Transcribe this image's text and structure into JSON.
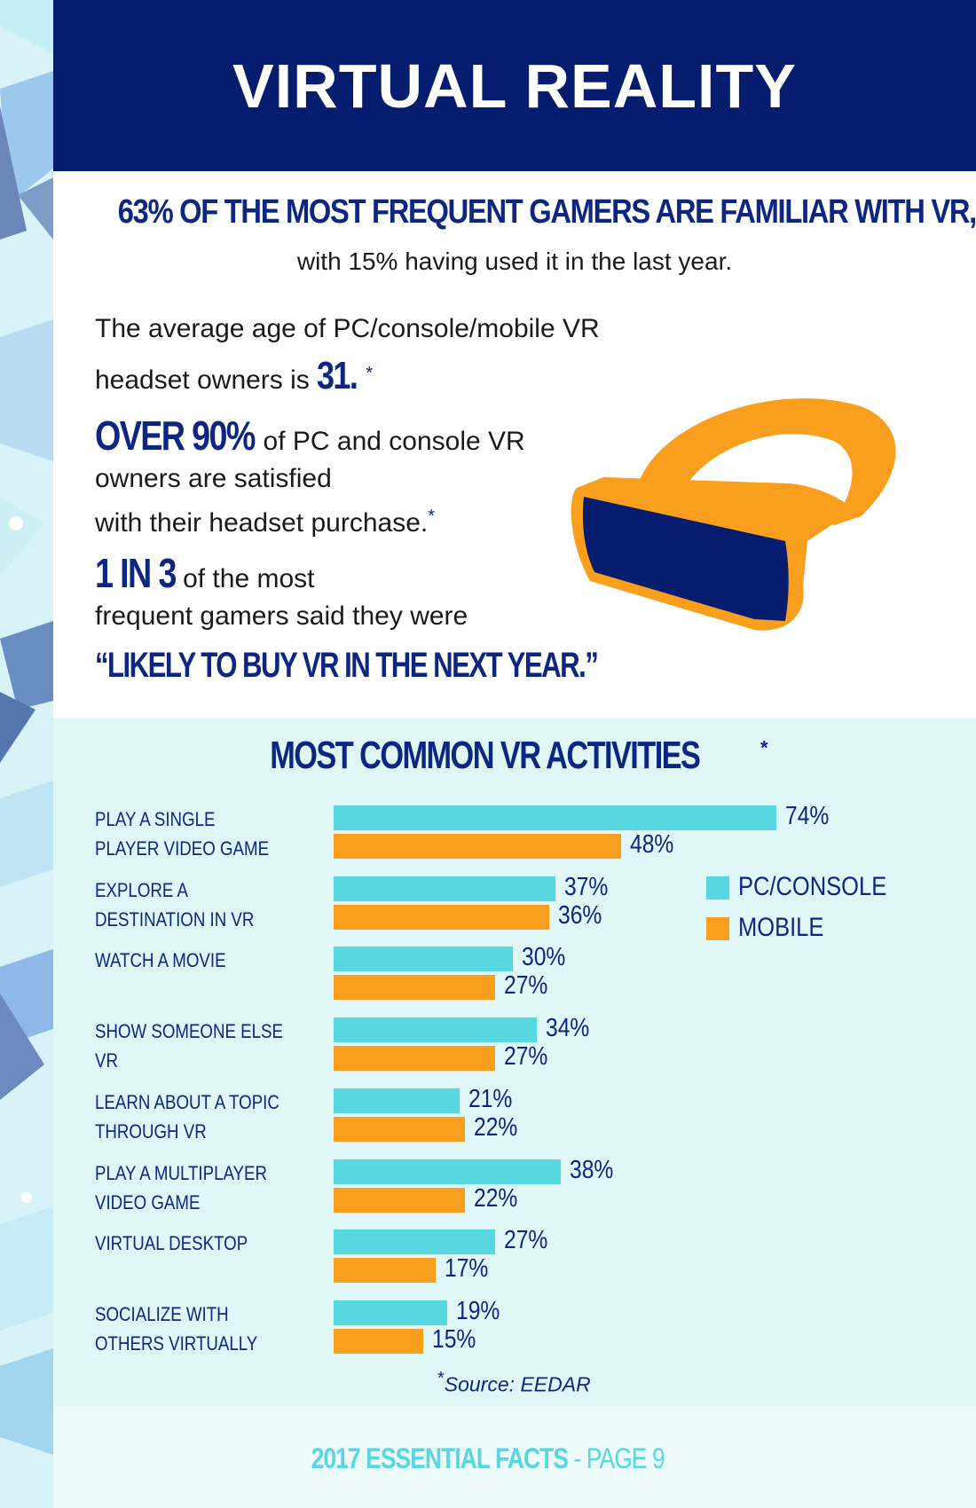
{
  "header": {
    "title": "VIRTUAL REALITY"
  },
  "headline": "63% OF THE MOST FREQUENT GAMERS ARE FAMILIAR WITH VR,",
  "subheadline": "with 15% having used it in the last year.",
  "fact1": {
    "line1": "The average age of PC/console/mobile VR",
    "line2": "headset owners is",
    "number": "31.",
    "asterisk": "*"
  },
  "fact2": {
    "number": "OVER 90%",
    "line1": " of PC and console VR",
    "line2": "owners are satisfied",
    "line3": "with their headset purchase.",
    "asterisk": "*"
  },
  "fact3": {
    "number": "1 IN 3",
    "line1": " of the most",
    "line2": "frequent gamers said they were",
    "quote": "“LIKELY TO BUY VR IN THE NEXT YEAR.”"
  },
  "icon": "vr-headset-icon",
  "colors": {
    "navy": "#0d2682",
    "header_bg": "#061c6e",
    "pc": "#57d7e0",
    "mobile": "#f99e1d"
  },
  "chart_data": {
    "type": "bar",
    "orientation": "horizontal",
    "title": "MOST COMMON VR ACTIVITIES",
    "title_asterisk": "*",
    "categories": [
      "PLAY A SINGLE\nPLAYER VIDEO GAME",
      "EXPLORE A\nDESTINATION IN VR",
      "WATCH A MOVIE",
      "SHOW SOMEONE ELSE VR",
      "LEARN ABOUT A TOPIC\nTHROUGH VR",
      "PLAY A MULTIPLAYER\nVIDEO GAME",
      "VIRTUAL DESKTOP",
      "SOCIALIZE WITH\nOTHERS VIRTUALLY"
    ],
    "series": [
      {
        "name": "PC/CONSOLE",
        "values": [
          74,
          37,
          30,
          34,
          21,
          38,
          27,
          19
        ],
        "color": "#57d7e0"
      },
      {
        "name": "MOBILE",
        "values": [
          48,
          36,
          27,
          27,
          22,
          22,
          17,
          15
        ],
        "color": "#f99e1d"
      }
    ],
    "value_suffix": "%",
    "legend": "right",
    "grid": false,
    "xlim": [
      0,
      74
    ]
  },
  "source": {
    "asterisk": "*",
    "text": "Source: EEDAR"
  },
  "footer": {
    "main": "2017 ESSENTIAL FACTS",
    "page": " - PAGE 9"
  }
}
